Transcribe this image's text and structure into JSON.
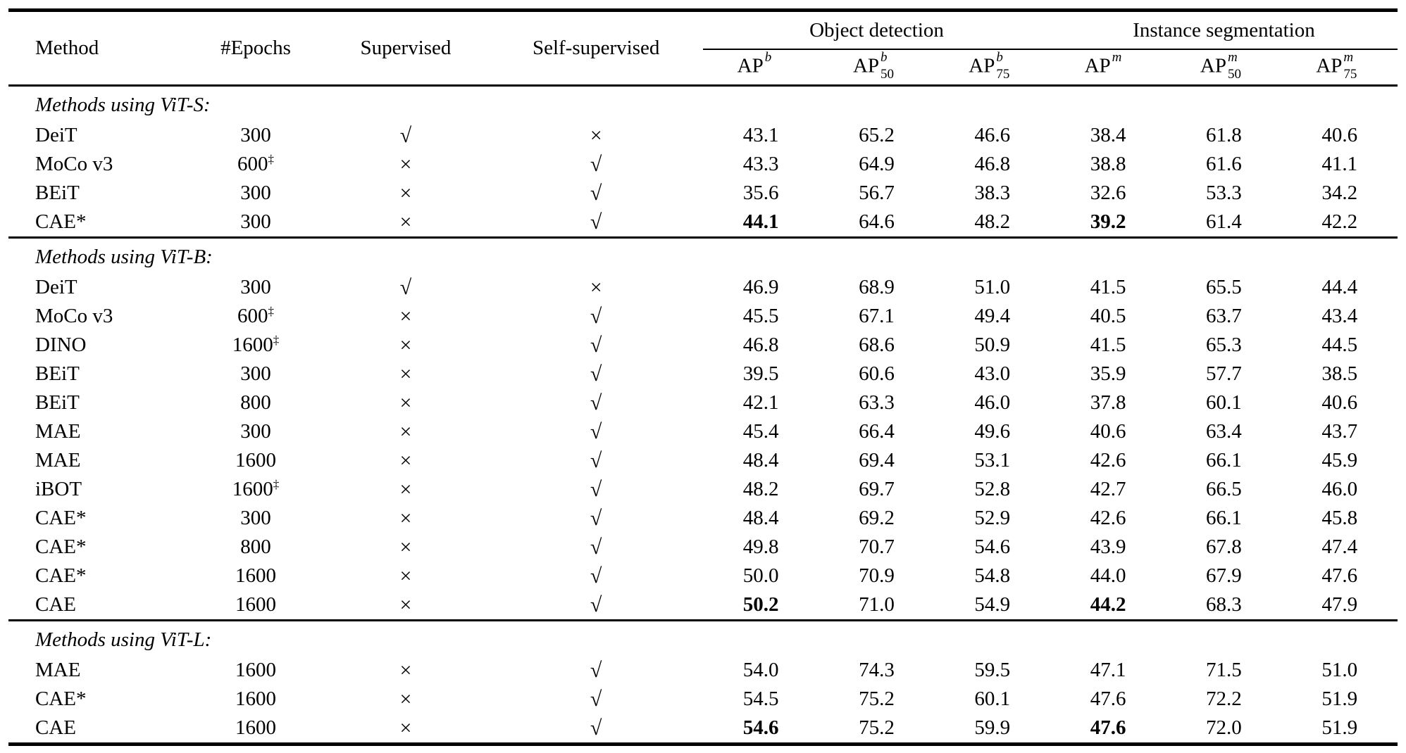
{
  "table": {
    "columns": {
      "method": "Method",
      "epochs": "#Epochs",
      "supervised": "Supervised",
      "self_supervised": "Self-supervised"
    },
    "groups": [
      {
        "label": "Object detection",
        "cols": [
          {
            "base": "AP",
            "sup": "b",
            "sub": ""
          },
          {
            "base": "AP",
            "sup": "b",
            "sub": "50"
          },
          {
            "base": "AP",
            "sup": "b",
            "sub": "75"
          }
        ]
      },
      {
        "label": "Instance segmentation",
        "cols": [
          {
            "base": "AP",
            "sup": "m",
            "sub": ""
          },
          {
            "base": "AP",
            "sup": "m",
            "sub": "50"
          },
          {
            "base": "AP",
            "sup": "m",
            "sub": "75"
          }
        ]
      }
    ],
    "symbols": {
      "check": "√",
      "cross": "×",
      "dagger": "‡"
    },
    "sections": [
      {
        "label": "Methods using ViT-S:",
        "rows": [
          {
            "method": "DeiT",
            "epochs": "300",
            "epochs_sup": "",
            "supervised": "√",
            "self_supervised": "×",
            "values": [
              "43.1",
              "65.2",
              "46.6",
              "38.4",
              "61.8",
              "40.6"
            ],
            "bold": []
          },
          {
            "method": "MoCo v3",
            "epochs": "600",
            "epochs_sup": "‡",
            "supervised": "×",
            "self_supervised": "√",
            "values": [
              "43.3",
              "64.9",
              "46.8",
              "38.8",
              "61.6",
              "41.1"
            ],
            "bold": []
          },
          {
            "method": "BEiT",
            "epochs": "300",
            "epochs_sup": "",
            "supervised": "×",
            "self_supervised": "√",
            "values": [
              "35.6",
              "56.7",
              "38.3",
              "32.6",
              "53.3",
              "34.2"
            ],
            "bold": []
          },
          {
            "method": "CAE*",
            "epochs": "300",
            "epochs_sup": "",
            "supervised": "×",
            "self_supervised": "√",
            "values": [
              "44.1",
              "64.6",
              "48.2",
              "39.2",
              "61.4",
              "42.2"
            ],
            "bold": [
              0,
              3
            ]
          }
        ]
      },
      {
        "label": "Methods using ViT-B:",
        "rows": [
          {
            "method": "DeiT",
            "epochs": "300",
            "epochs_sup": "",
            "supervised": "√",
            "self_supervised": "×",
            "values": [
              "46.9",
              "68.9",
              "51.0",
              "41.5",
              "65.5",
              "44.4"
            ],
            "bold": []
          },
          {
            "method": "MoCo v3",
            "epochs": "600",
            "epochs_sup": "‡",
            "supervised": "×",
            "self_supervised": "√",
            "values": [
              "45.5",
              "67.1",
              "49.4",
              "40.5",
              "63.7",
              "43.4"
            ],
            "bold": []
          },
          {
            "method": "DINO",
            "epochs": "1600",
            "epochs_sup": "‡",
            "supervised": "×",
            "self_supervised": "√",
            "values": [
              "46.8",
              "68.6",
              "50.9",
              "41.5",
              "65.3",
              "44.5"
            ],
            "bold": []
          },
          {
            "method": "BEiT",
            "epochs": "300",
            "epochs_sup": "",
            "supervised": "×",
            "self_supervised": "√",
            "values": [
              "39.5",
              "60.6",
              "43.0",
              "35.9",
              "57.7",
              "38.5"
            ],
            "bold": []
          },
          {
            "method": "BEiT",
            "epochs": "800",
            "epochs_sup": "",
            "supervised": "×",
            "self_supervised": "√",
            "values": [
              "42.1",
              "63.3",
              "46.0",
              "37.8",
              "60.1",
              "40.6"
            ],
            "bold": []
          },
          {
            "method": "MAE",
            "epochs": "300",
            "epochs_sup": "",
            "supervised": "×",
            "self_supervised": "√",
            "values": [
              "45.4",
              "66.4",
              "49.6",
              "40.6",
              "63.4",
              "43.7"
            ],
            "bold": []
          },
          {
            "method": "MAE",
            "epochs": "1600",
            "epochs_sup": "",
            "supervised": "×",
            "self_supervised": "√",
            "values": [
              "48.4",
              "69.4",
              "53.1",
              "42.6",
              "66.1",
              "45.9"
            ],
            "bold": []
          },
          {
            "method": "iBOT",
            "epochs": "1600",
            "epochs_sup": "‡",
            "supervised": "×",
            "self_supervised": "√",
            "values": [
              "48.2",
              "69.7",
              "52.8",
              "42.7",
              "66.5",
              "46.0"
            ],
            "bold": []
          },
          {
            "method": "CAE*",
            "epochs": "300",
            "epochs_sup": "",
            "supervised": "×",
            "self_supervised": "√",
            "values": [
              "48.4",
              "69.2",
              "52.9",
              "42.6",
              "66.1",
              "45.8"
            ],
            "bold": []
          },
          {
            "method": "CAE*",
            "epochs": "800",
            "epochs_sup": "",
            "supervised": "×",
            "self_supervised": "√",
            "values": [
              "49.8",
              "70.7",
              "54.6",
              "43.9",
              "67.8",
              "47.4"
            ],
            "bold": []
          },
          {
            "method": "CAE*",
            "epochs": "1600",
            "epochs_sup": "",
            "supervised": "×",
            "self_supervised": "√",
            "values": [
              "50.0",
              "70.9",
              "54.8",
              "44.0",
              "67.9",
              "47.6"
            ],
            "bold": []
          },
          {
            "method": "CAE",
            "epochs": "1600",
            "epochs_sup": "",
            "supervised": "×",
            "self_supervised": "√",
            "values": [
              "50.2",
              "71.0",
              "54.9",
              "44.2",
              "68.3",
              "47.9"
            ],
            "bold": [
              0,
              3
            ]
          }
        ]
      },
      {
        "label": "Methods using ViT-L:",
        "rows": [
          {
            "method": "MAE",
            "epochs": "1600",
            "epochs_sup": "",
            "supervised": "×",
            "self_supervised": "√",
            "values": [
              "54.0",
              "74.3",
              "59.5",
              "47.1",
              "71.5",
              "51.0"
            ],
            "bold": []
          },
          {
            "method": "CAE*",
            "epochs": "1600",
            "epochs_sup": "",
            "supervised": "×",
            "self_supervised": "√",
            "values": [
              "54.5",
              "75.2",
              "60.1",
              "47.6",
              "72.2",
              "51.9"
            ],
            "bold": []
          },
          {
            "method": "CAE",
            "epochs": "1600",
            "epochs_sup": "",
            "supervised": "×",
            "self_supervised": "√",
            "values": [
              "54.6",
              "75.2",
              "59.9",
              "47.6",
              "72.0",
              "51.9"
            ],
            "bold": [
              0,
              3
            ]
          }
        ]
      }
    ]
  }
}
